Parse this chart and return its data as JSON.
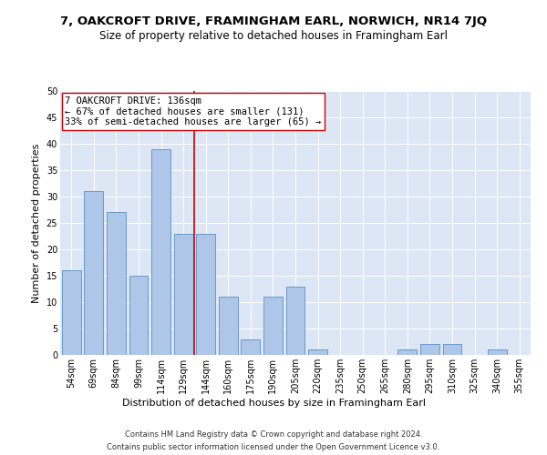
{
  "title": "7, OAKCROFT DRIVE, FRAMINGHAM EARL, NORWICH, NR14 7JQ",
  "subtitle": "Size of property relative to detached houses in Framingham Earl",
  "xlabel": "Distribution of detached houses by size in Framingham Earl",
  "ylabel": "Number of detached properties",
  "footnote1": "Contains HM Land Registry data © Crown copyright and database right 2024.",
  "footnote2": "Contains public sector information licensed under the Open Government Licence v3.0.",
  "categories": [
    "54sqm",
    "69sqm",
    "84sqm",
    "99sqm",
    "114sqm",
    "129sqm",
    "144sqm",
    "160sqm",
    "175sqm",
    "190sqm",
    "205sqm",
    "220sqm",
    "235sqm",
    "250sqm",
    "265sqm",
    "280sqm",
    "295sqm",
    "310sqm",
    "325sqm",
    "340sqm",
    "355sqm"
  ],
  "values": [
    16,
    31,
    27,
    15,
    39,
    23,
    23,
    11,
    3,
    11,
    13,
    1,
    0,
    0,
    0,
    1,
    2,
    2,
    0,
    1,
    0
  ],
  "bar_color": "#aec6e8",
  "bar_edge_color": "#5a8fc2",
  "vline_x": 5.5,
  "vline_color": "#cc0000",
  "annotation_text": "7 OAKCROFT DRIVE: 136sqm\n← 67% of detached houses are smaller (131)\n33% of semi-detached houses are larger (65) →",
  "annotation_box_color": "#ffffff",
  "annotation_box_edge_color": "#cc0000",
  "ylim": [
    0,
    50
  ],
  "yticks": [
    0,
    5,
    10,
    15,
    20,
    25,
    30,
    35,
    40,
    45,
    50
  ],
  "background_color": "#dce6f5",
  "title_fontsize": 9.5,
  "subtitle_fontsize": 8.5,
  "axis_fontsize": 8,
  "tick_fontsize": 7,
  "footnote_fontsize": 6,
  "annotation_fontsize": 7.5
}
